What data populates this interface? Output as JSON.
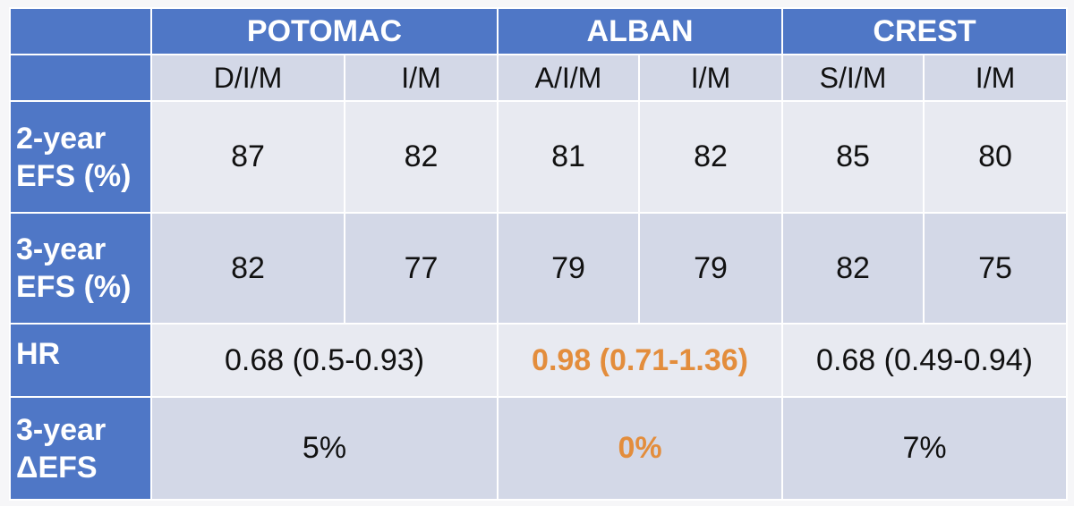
{
  "trials": [
    {
      "name": "POTOMAC",
      "arms": [
        "D/I/M",
        "I/M"
      ]
    },
    {
      "name": "ALBAN",
      "arms": [
        "A/I/M",
        "I/M"
      ]
    },
    {
      "name": "CREST",
      "arms": [
        "S/I/M",
        "I/M"
      ]
    }
  ],
  "rows": {
    "efs2": {
      "label_line1": "2-year",
      "label_line2": "EFS (%)",
      "values": [
        "87",
        "82",
        "81",
        "82",
        "85",
        "80"
      ]
    },
    "efs3": {
      "label_line1": "3-year",
      "label_line2": "EFS (%)",
      "values": [
        "82",
        "77",
        "79",
        "79",
        "82",
        "75"
      ]
    },
    "hr": {
      "label": "HR",
      "values": [
        "0.68 (0.5-0.93)",
        "0.98 (0.71-1.36)",
        "0.68 (0.49-0.94)"
      ]
    },
    "delta": {
      "label_line1": "3-year",
      "label_line2": "ΔEFS",
      "values": [
        "5%",
        "0%",
        "7%"
      ]
    }
  },
  "colors": {
    "header_blue": "#4f77c6",
    "light_cell": "#e8eaf1",
    "dark_cell": "#d3d8e7",
    "highlight_orange": "#e38d3c"
  }
}
